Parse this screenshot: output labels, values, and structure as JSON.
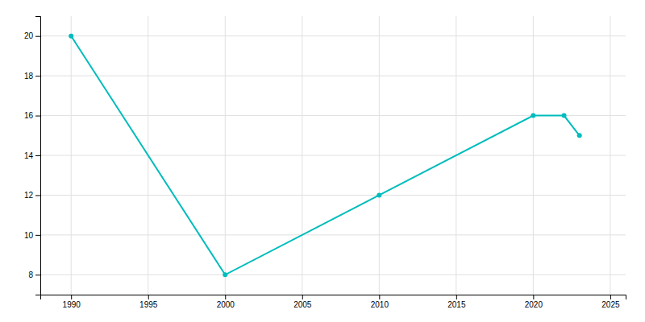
{
  "chart_data": {
    "type": "line",
    "x": [
      1990,
      2000,
      2010,
      2020,
      2022,
      2023
    ],
    "values": [
      20,
      8,
      12,
      16,
      16,
      15
    ],
    "color": "#00BCBC",
    "marker": "circle",
    "xlim": [
      1988,
      2026
    ],
    "xticks": [
      1990,
      1995,
      2000,
      2005,
      2010,
      2015,
      2020,
      2025
    ],
    "ylim": [
      7,
      21
    ],
    "yticks": [
      8,
      10,
      12,
      14,
      16,
      18,
      20
    ],
    "grid": true
  }
}
